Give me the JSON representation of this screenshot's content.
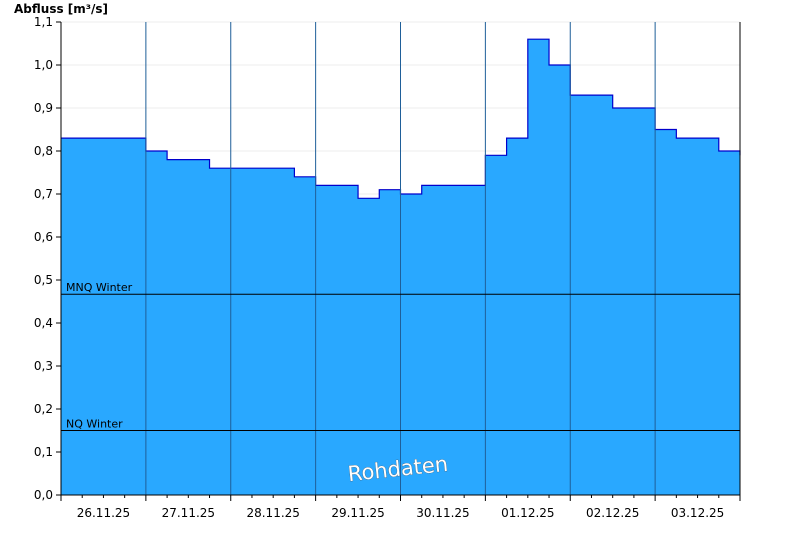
{
  "chart_data": {
    "type": "area",
    "title": "",
    "ylabel": "Abfluss [m³/s]",
    "xlabel": "",
    "ylim": [
      0,
      1.1
    ],
    "y_ticks": [
      "0,0",
      "0,1",
      "0,2",
      "0,3",
      "0,4",
      "0,5",
      "0,6",
      "0,7",
      "0,8",
      "0,9",
      "1,0",
      "1,1"
    ],
    "x_ticks": [
      "26.11.25",
      "27.11.25",
      "28.11.25",
      "29.11.25",
      "30.11.25",
      "01.12.25",
      "02.12.25",
      "03.12.25"
    ],
    "x_range_days": [
      0,
      8
    ],
    "grid": true,
    "reference_lines": [
      {
        "name": "MNQ Winter",
        "value": 0.467
      },
      {
        "name": "NQ Winter",
        "value": 0.15
      }
    ],
    "annotation": "Rohdaten",
    "colors": {
      "fill": "#29a8ff",
      "line": "#0000cc",
      "grid": "#1f5f99",
      "ref_line": "#000000"
    },
    "series": [
      {
        "x": [
          0,
          0.25,
          0.5,
          0.75,
          1,
          1.25,
          1.5,
          1.75,
          2,
          2.25,
          2.5,
          2.75,
          3,
          3.25,
          3.5,
          3.75,
          4,
          4.25,
          4.5,
          4.75,
          5,
          5.25,
          5.5,
          5.75,
          6,
          6.25,
          6.5,
          6.75,
          7,
          7.25,
          7.5,
          7.75,
          8
        ],
        "values": [
          0.83,
          0.83,
          0.83,
          0.83,
          0.8,
          0.78,
          0.78,
          0.76,
          0.76,
          0.76,
          0.76,
          0.74,
          0.72,
          0.72,
          0.69,
          0.71,
          0.7,
          0.72,
          0.72,
          0.72,
          0.79,
          0.83,
          1.06,
          1.0,
          0.93,
          0.93,
          0.9,
          0.9,
          0.85,
          0.83,
          0.83,
          0.8,
          0.79
        ]
      }
    ]
  }
}
